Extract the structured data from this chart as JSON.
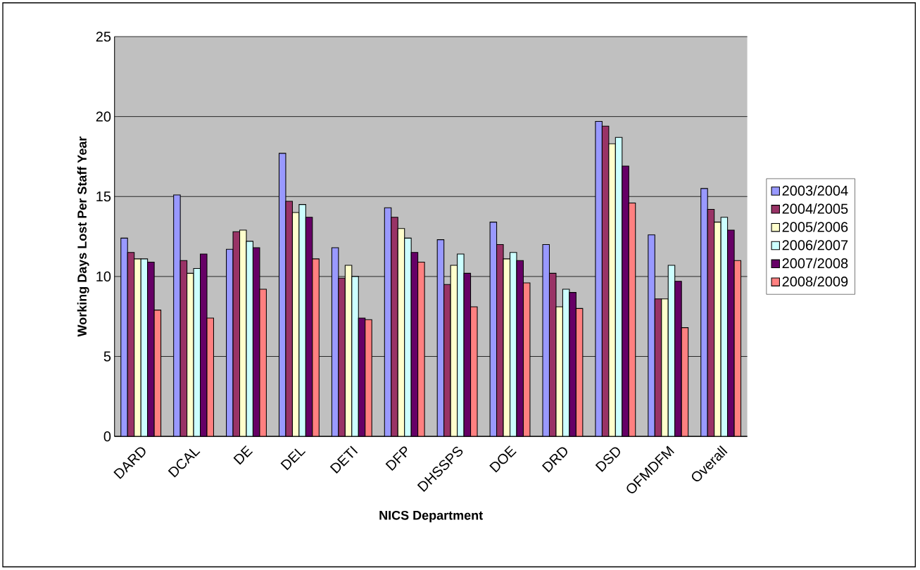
{
  "chart_data": {
    "type": "bar",
    "xlabel": "NICS Department",
    "ylabel": "Working Days Lost Per Staff Year",
    "categories": [
      "DARD",
      "DCAL",
      "DE",
      "DEL",
      "DETI",
      "DFP",
      "DHSSPS",
      "DOE",
      "DRD",
      "DSD",
      "OFMDFM",
      "Overall"
    ],
    "series": [
      {
        "name": "2003/2004",
        "color": "#9999ff",
        "values": [
          12.4,
          15.1,
          11.7,
          17.7,
          11.8,
          14.3,
          12.3,
          13.4,
          12.0,
          19.7,
          12.6,
          15.5
        ]
      },
      {
        "name": "2004/2005",
        "color": "#993366",
        "values": [
          11.5,
          11.0,
          12.8,
          14.7,
          9.9,
          13.7,
          9.5,
          12.0,
          10.2,
          19.4,
          8.6,
          14.2
        ]
      },
      {
        "name": "2005/2006",
        "color": "#ffffcc",
        "values": [
          11.1,
          10.2,
          12.9,
          14.0,
          10.7,
          13.0,
          10.7,
          11.1,
          8.1,
          18.3,
          8.6,
          13.4
        ]
      },
      {
        "name": "2006/2007",
        "color": "#ccffff",
        "values": [
          11.1,
          10.5,
          12.2,
          14.5,
          10.0,
          12.4,
          11.4,
          11.5,
          9.2,
          18.7,
          10.7,
          13.7
        ]
      },
      {
        "name": "2007/2008",
        "color": "#660066",
        "values": [
          10.9,
          11.4,
          11.8,
          13.7,
          7.4,
          11.5,
          10.2,
          11.0,
          9.0,
          16.9,
          9.7,
          12.9
        ]
      },
      {
        "name": "2008/2009",
        "color": "#ff8080",
        "values": [
          7.9,
          7.4,
          9.2,
          11.1,
          7.3,
          10.9,
          8.1,
          9.6,
          8.0,
          14.6,
          6.8,
          11.0
        ]
      }
    ],
    "ylim": [
      0,
      25
    ],
    "yticks": [
      0,
      5,
      10,
      15,
      20,
      25
    ],
    "grid": "y",
    "legend": "right"
  }
}
